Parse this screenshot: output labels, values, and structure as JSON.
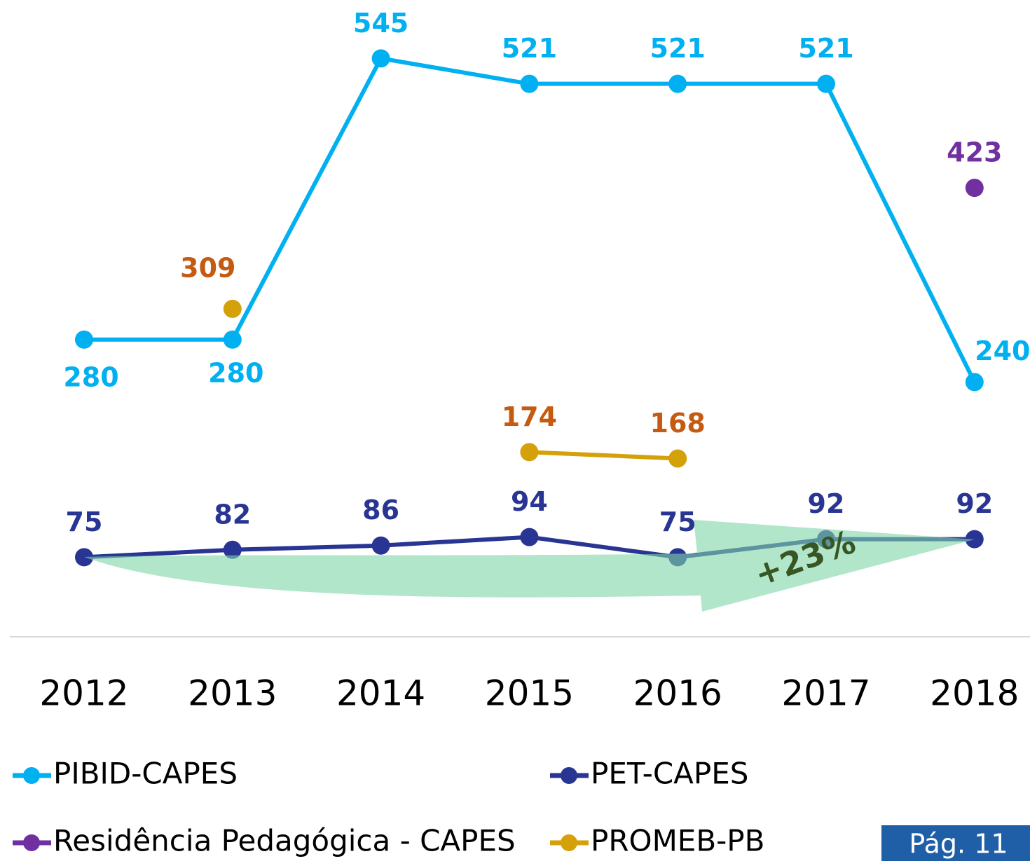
{
  "chart_data": {
    "type": "line",
    "categories": [
      "2012",
      "2013",
      "2014",
      "2015",
      "2016",
      "2017",
      "2018"
    ],
    "series": [
      {
        "name": "PIBID-CAPES",
        "color": "#00b0f0",
        "label_color": "#00b0f0",
        "values": [
          280,
          280,
          545,
          521,
          521,
          521,
          240
        ]
      },
      {
        "name": "PET-CAPES",
        "color": "#283593",
        "label_color": "#283593",
        "values": [
          75,
          82,
          86,
          94,
          75,
          92,
          92
        ]
      },
      {
        "name": "Residência Pedagógica - CAPES",
        "color": "#7030a0",
        "label_color": "#7030a0",
        "values": [
          null,
          null,
          null,
          null,
          null,
          null,
          423
        ]
      },
      {
        "name": "PROMEB-PB",
        "color": "#d4a10a",
        "label_color": "#c55a11",
        "values": [
          null,
          309,
          null,
          174,
          168,
          null,
          null
        ]
      }
    ],
    "ylim": [
      0,
      600
    ],
    "annotation": "+23%",
    "page_label": "Pág. 11"
  }
}
